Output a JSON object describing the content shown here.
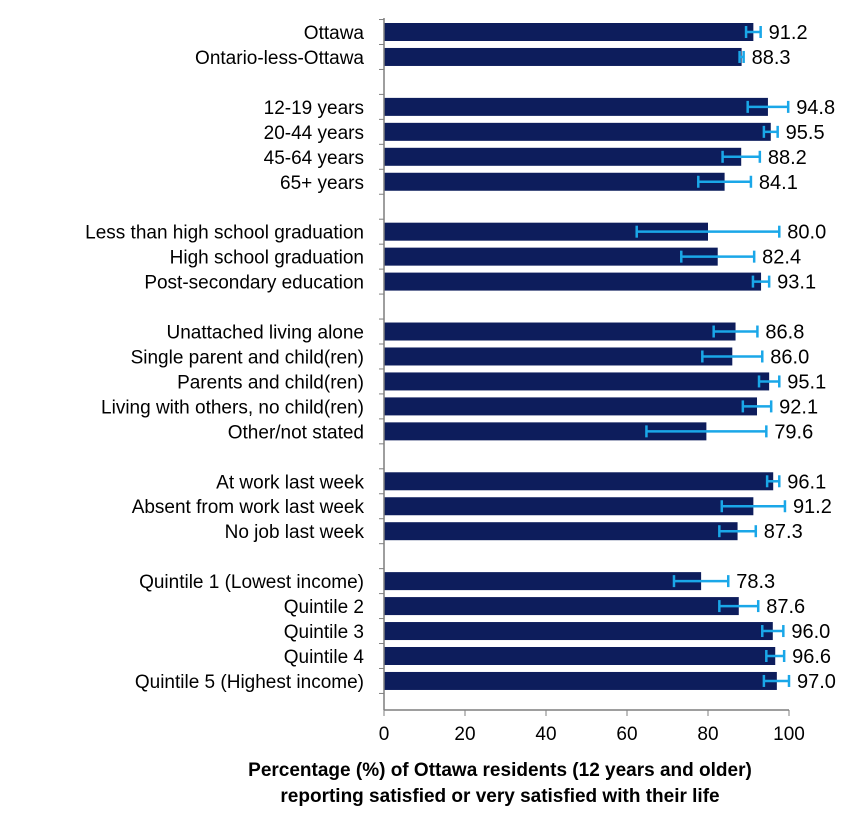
{
  "chart_data": {
    "type": "bar",
    "orientation": "horizontal",
    "bar_color": "#0d1d5c",
    "errorbar_color": "#1aa7e8",
    "xlim": [
      0,
      100
    ],
    "xticks": [
      "0",
      "20",
      "40",
      "60",
      "80",
      "100"
    ],
    "xlabel_lines": [
      "Percentage (%)  of Ottawa residents (12 years and older)",
      "reporting satisfied or very satisfied with their life"
    ],
    "groups": [
      {
        "items": [
          {
            "label": "Ottawa",
            "value": 91.2,
            "text": "91.2",
            "ci": [
              89.4,
              93.0
            ]
          },
          {
            "label": "Ontario-less-Ottawa",
            "value": 88.3,
            "text": "88.3",
            "ci": [
              87.8,
              88.8
            ]
          }
        ]
      },
      {
        "items": [
          {
            "label": "12-19 years",
            "value": 94.8,
            "text": "94.8",
            "ci": [
              89.8,
              99.8
            ]
          },
          {
            "label": "20-44 years",
            "value": 95.5,
            "text": "95.5",
            "ci": [
              93.8,
              97.2
            ]
          },
          {
            "label": "45-64 years",
            "value": 88.2,
            "text": "88.2",
            "ci": [
              83.6,
              92.8
            ]
          },
          {
            "label": "65+ years",
            "value": 84.1,
            "text": "84.1",
            "ci": [
              77.6,
              90.6
            ]
          }
        ]
      },
      {
        "items": [
          {
            "label": "Less than high school graduation",
            "value": 80.0,
            "text": "80.0",
            "ci": [
              62.4,
              97.6
            ]
          },
          {
            "label": "High school graduation",
            "value": 82.4,
            "text": "82.4",
            "ci": [
              73.4,
              91.4
            ]
          },
          {
            "label": "Post-secondary education",
            "value": 93.1,
            "text": "93.1",
            "ci": [
              91.1,
              95.1
            ]
          }
        ]
      },
      {
        "items": [
          {
            "label": "Unattached living alone",
            "value": 86.8,
            "text": "86.8",
            "ci": [
              81.4,
              92.2
            ]
          },
          {
            "label": "Single parent and child(ren)",
            "value": 86.0,
            "text": "86.0",
            "ci": [
              78.6,
              93.4
            ]
          },
          {
            "label": "Parents and child(ren)",
            "value": 95.1,
            "text": "95.1",
            "ci": [
              92.6,
              97.6
            ]
          },
          {
            "label": "Living with others, no child(ren)",
            "value": 92.1,
            "text": "92.1",
            "ci": [
              88.6,
              95.6
            ]
          },
          {
            "label": "Other/not stated",
            "value": 79.6,
            "text": "79.6",
            "ci": [
              64.8,
              94.4
            ]
          }
        ]
      },
      {
        "items": [
          {
            "label": "At work last week",
            "value": 96.1,
            "text": "96.1",
            "ci": [
              94.6,
              97.6
            ]
          },
          {
            "label": "Absent from work last week",
            "value": 91.2,
            "text": "91.2",
            "ci": [
              83.4,
              99.0
            ]
          },
          {
            "label": "No job last week",
            "value": 87.3,
            "text": "87.3",
            "ci": [
              82.8,
              91.8
            ]
          }
        ]
      },
      {
        "items": [
          {
            "label": "Quintile 1 (Lowest income)",
            "value": 78.3,
            "text": "78.3",
            "ci": [
              71.6,
              85.0
            ]
          },
          {
            "label": "Quintile 2",
            "value": 87.6,
            "text": "87.6",
            "ci": [
              82.8,
              92.4
            ]
          },
          {
            "label": "Quintile 3",
            "value": 96.0,
            "text": "96.0",
            "ci": [
              93.4,
              98.6
            ]
          },
          {
            "label": "Quintile 4",
            "value": 96.6,
            "text": "96.6",
            "ci": [
              94.4,
              98.8
            ]
          },
          {
            "label": "Quintile 5 (Highest income)",
            "value": 97.0,
            "text": "97.0",
            "ci": [
              93.8,
              100.0
            ]
          }
        ]
      }
    ]
  }
}
